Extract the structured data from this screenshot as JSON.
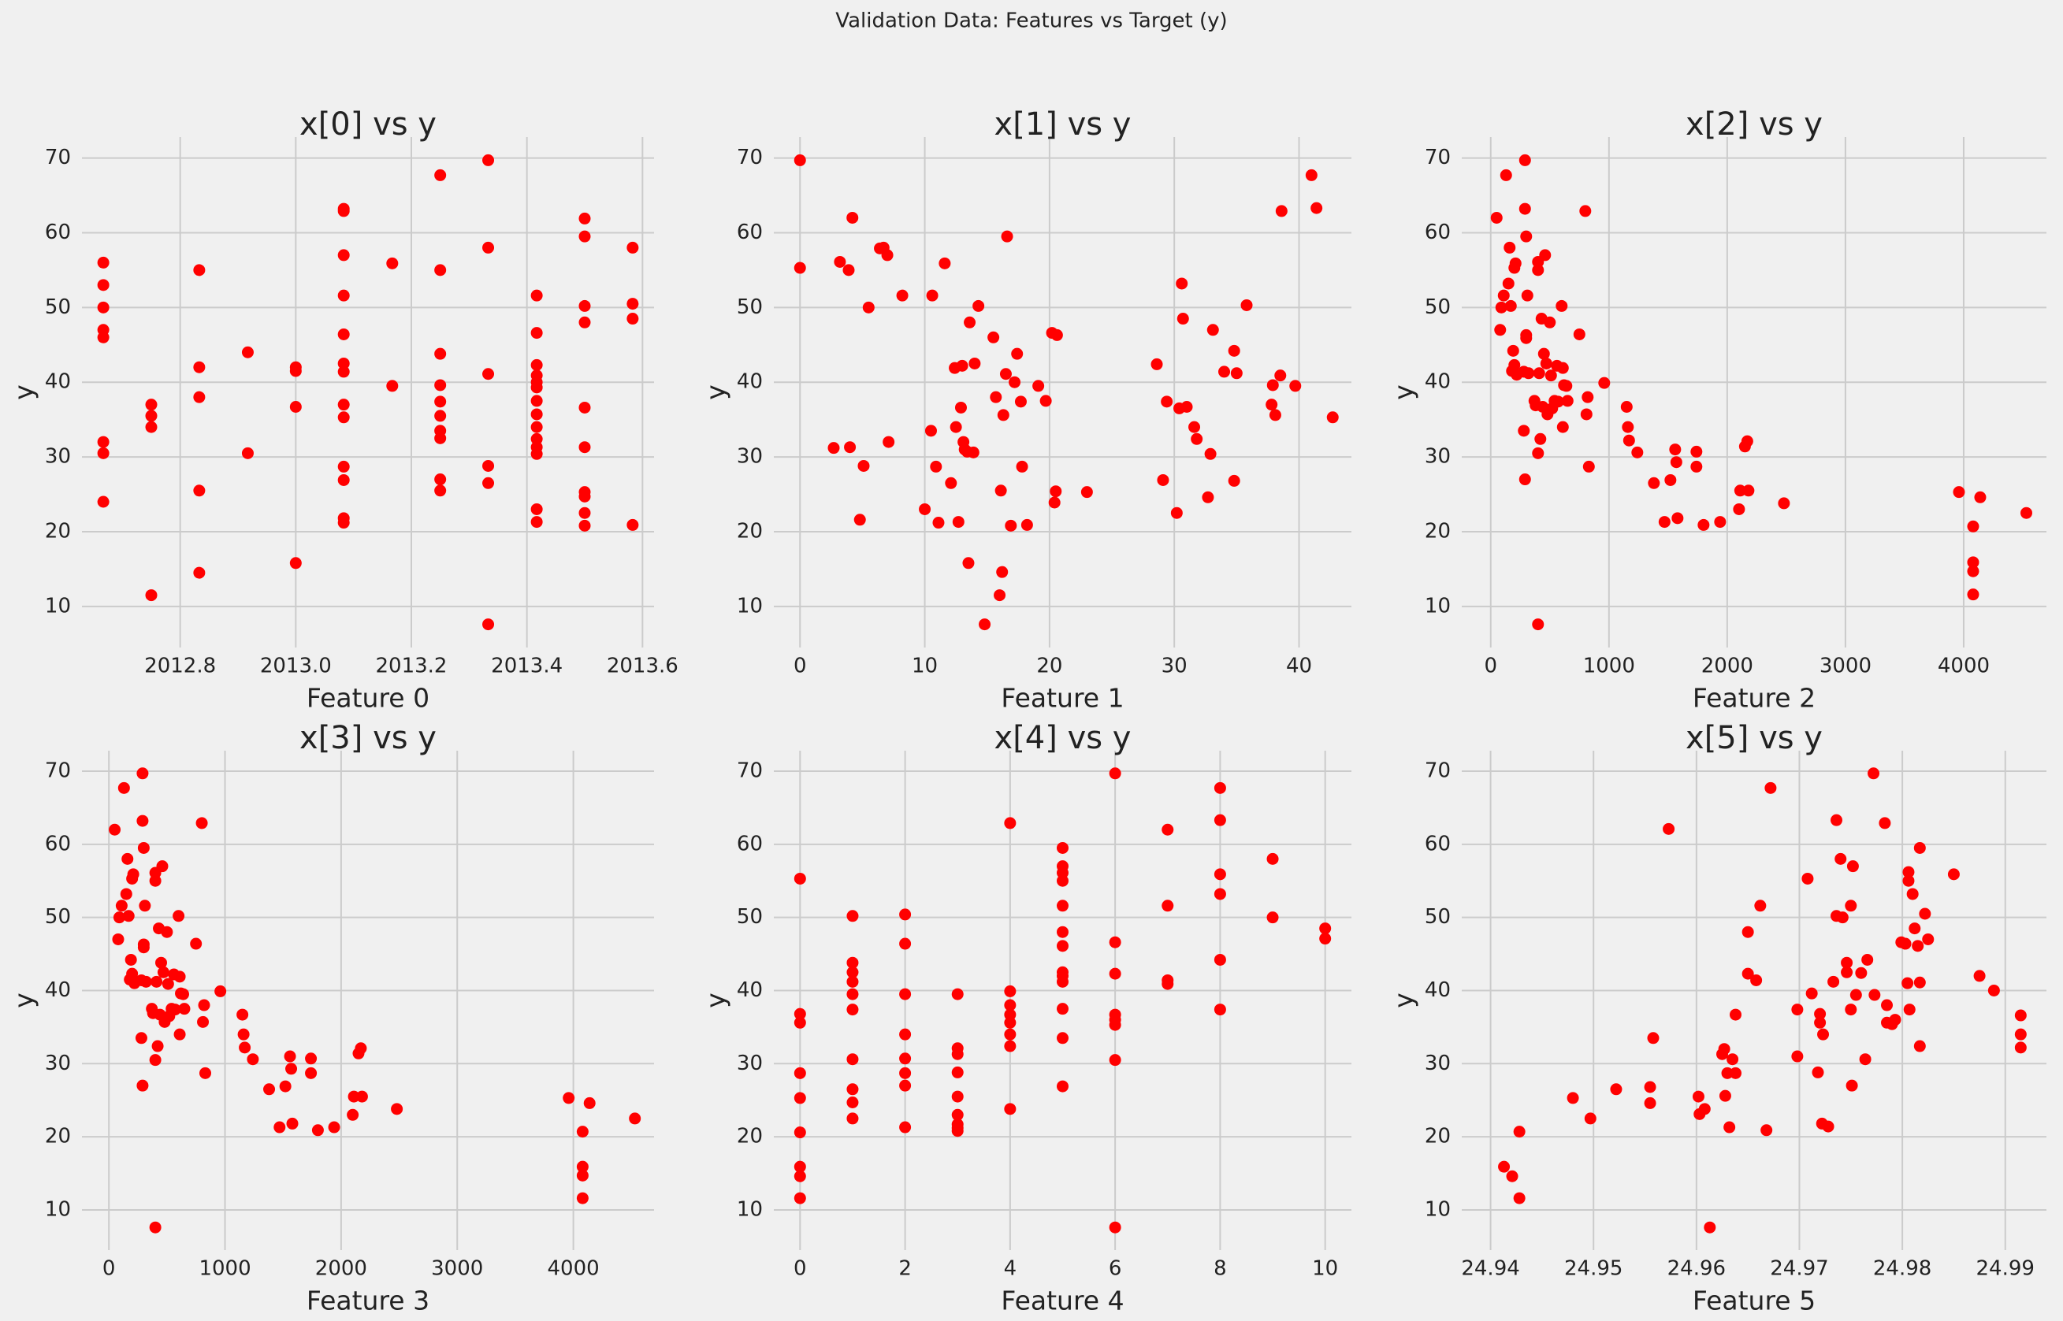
{
  "title": "Validation Data: Features vs Target (y)",
  "chart_data": [
    {
      "type": "scatter",
      "title": "x[0] vs y",
      "x_label": "Feature 0",
      "y_label": "y",
      "color": "red",
      "grid": true,
      "xlim": [
        2012.63,
        2013.62
      ],
      "ylim": [
        4.5,
        72.8
      ],
      "xticks": [
        2012.8,
        {
          "value": 2013.0,
          "label": "2013.0"
        },
        2013.2,
        2013.4,
        2013.6
      ],
      "yticks": [
        10,
        20,
        30,
        40,
        50,
        60,
        70
      ],
      "x": [
        2012.667,
        2012.667,
        2012.667,
        2012.667,
        2012.667,
        2012.667,
        2012.667,
        2012.667,
        2012.75,
        2012.75,
        2012.75,
        2012.75,
        2012.833,
        2012.833,
        2012.833,
        2012.833,
        2012.833,
        2012.917,
        2012.917,
        2013.0,
        2013.0,
        2013.0,
        2013.0,
        2013.083,
        2013.083,
        2013.083,
        2013.083,
        2013.083,
        2013.083,
        2013.083,
        2013.083,
        2013.083,
        2013.083,
        2013.083,
        2013.083,
        2013.083,
        2013.167,
        2013.167,
        2013.25,
        2013.25,
        2013.25,
        2013.25,
        2013.25,
        2013.25,
        2013.25,
        2013.25,
        2013.25,
        2013.25,
        2013.333,
        2013.333,
        2013.333,
        2013.333,
        2013.333,
        2013.333,
        2013.417,
        2013.417,
        2013.417,
        2013.417,
        2013.417,
        2013.417,
        2013.417,
        2013.417,
        2013.417,
        2013.417,
        2013.417,
        2013.417,
        2013.417,
        2013.417,
        2013.5,
        2013.5,
        2013.5,
        2013.5,
        2013.5,
        2013.5,
        2013.5,
        2013.5,
        2013.5,
        2013.5,
        2013.583,
        2013.583,
        2013.583,
        2013.583
      ],
      "values": [
        56,
        53,
        50,
        47,
        46,
        32,
        30.5,
        24,
        37,
        35.5,
        34,
        11.5,
        55,
        42,
        38,
        25.5,
        14.5,
        44,
        30.5,
        42,
        41.5,
        36.7,
        15.8,
        63.2,
        62.9,
        57,
        51.6,
        46.4,
        42.5,
        41.4,
        37,
        35.3,
        28.7,
        26.9,
        21.8,
        21.2,
        55.9,
        39.5,
        67.7,
        55,
        43.8,
        39.6,
        37.4,
        35.5,
        33.5,
        32.5,
        27,
        25.5,
        69.7,
        58,
        41.1,
        28.8,
        26.5,
        7.6,
        51.6,
        46.6,
        42.3,
        40.9,
        40,
        39.3,
        37.5,
        35.7,
        34,
        32.4,
        31.3,
        30.4,
        23,
        21.3,
        61.9,
        59.5,
        50.2,
        48,
        36.6,
        31.3,
        25.3,
        24.7,
        22.5,
        20.8,
        58,
        50.5,
        48.5,
        20.9
      ]
    },
    {
      "type": "scatter",
      "title": "x[1] vs y",
      "x_label": "Feature 1",
      "y_label": "y",
      "color": "red",
      "grid": true,
      "xlim": [
        -2.1,
        44.2
      ],
      "ylim": [
        4.5,
        72.8
      ],
      "xticks": [
        0,
        10,
        20,
        30,
        40
      ],
      "yticks": [
        10,
        20,
        30,
        40,
        50,
        60,
        70
      ],
      "x": [
        0,
        0,
        2.7,
        3.2,
        3.9,
        4,
        4.2,
        4.8,
        5.1,
        5.5,
        6.4,
        6.7,
        7,
        7.1,
        8.2,
        10,
        10.5,
        10.6,
        10.9,
        11.1,
        11.6,
        12.1,
        12.4,
        12.5,
        12.7,
        12.9,
        13,
        13.1,
        13.2,
        13.4,
        13.5,
        13.6,
        13.9,
        14,
        14.3,
        14.8,
        15.5,
        15.7,
        16,
        16.1,
        16.2,
        16.3,
        16.5,
        16.6,
        16.9,
        17.2,
        17.4,
        17.7,
        17.8,
        18.2,
        19.1,
        19.7,
        20.2,
        20.4,
        20.5,
        20.6,
        23,
        28.6,
        29.1,
        29.4,
        30.2,
        30.4,
        30.6,
        30.7,
        31,
        31.6,
        31.8,
        32.7,
        32.9,
        33.1,
        34,
        34.8,
        34.8,
        35,
        35.8,
        37.8,
        37.9,
        38.1,
        38.5,
        38.6,
        39.7,
        41,
        41.4,
        42.7
      ],
      "values": [
        69.7,
        55.3,
        31.2,
        56.1,
        55,
        31.3,
        62,
        21.6,
        28.8,
        50,
        57.9,
        58,
        57,
        32,
        51.6,
        23,
        33.5,
        51.6,
        28.7,
        21.2,
        55.9,
        26.5,
        41.9,
        34,
        21.3,
        36.6,
        42.2,
        32,
        31,
        30.7,
        15.8,
        48,
        30.6,
        42.5,
        50.2,
        7.6,
        46,
        38,
        11.5,
        25.5,
        14.6,
        35.6,
        41.1,
        59.5,
        20.8,
        40,
        43.8,
        37.4,
        28.7,
        20.9,
        39.5,
        37.5,
        46.6,
        23.9,
        25.4,
        46.3,
        25.3,
        42.4,
        26.9,
        37.4,
        22.5,
        36.5,
        53.2,
        48.5,
        36.7,
        34,
        32.4,
        24.6,
        30.4,
        47,
        41.4,
        44.2,
        26.8,
        41.2,
        50.3,
        37,
        39.6,
        35.6,
        40.9,
        62.9,
        39.5,
        67.7,
        63.3,
        35.3
      ]
    },
    {
      "type": "scatter",
      "title": "x[2] vs y",
      "x_label": "Feature 2",
      "y_label": "y",
      "color": "red",
      "grid": true,
      "xlim": [
        -245,
        4700
      ],
      "ylim": [
        4.5,
        72.8
      ],
      "xticks": [
        0,
        1000,
        2000,
        3000,
        4000
      ],
      "yticks": [
        10,
        20,
        30,
        40,
        50,
        60,
        70
      ],
      "x": [
        50,
        80,
        90,
        110,
        130,
        150,
        160,
        170,
        180,
        190,
        200,
        200,
        210,
        220,
        280,
        280,
        290,
        290,
        290,
        300,
        300,
        300,
        310,
        320,
        370,
        380,
        400,
        400,
        400,
        400,
        410,
        420,
        430,
        440,
        450,
        460,
        470,
        480,
        500,
        510,
        520,
        540,
        560,
        570,
        600,
        610,
        610,
        620,
        640,
        650,
        750,
        800,
        810,
        820,
        830,
        960,
        1150,
        1160,
        1170,
        1240,
        1380,
        1470,
        1520,
        1560,
        1580,
        1570,
        1740,
        1740,
        1800,
        1940,
        2100,
        2110,
        2150,
        2170,
        2180,
        2480,
        3960,
        4080,
        4080,
        4080,
        4080,
        4140,
        4530
      ],
      "values": [
        62,
        47,
        50,
        51.6,
        67.7,
        53.2,
        58,
        50.2,
        41.5,
        44.2,
        55.3,
        42.3,
        55.9,
        41,
        33.5,
        41.4,
        69.7,
        63.2,
        27,
        46.3,
        45.9,
        59.5,
        51.6,
        41.2,
        37.5,
        36.9,
        56.1,
        55,
        30.5,
        7.6,
        41.2,
        32.4,
        48.5,
        36.7,
        43.8,
        57,
        42.5,
        35.7,
        48,
        40.9,
        36.5,
        37.5,
        42.2,
        37.4,
        50.2,
        41.9,
        34,
        39.6,
        39.5,
        37.5,
        46.4,
        62.9,
        35.7,
        38,
        28.7,
        39.9,
        36.7,
        34,
        32.2,
        30.6,
        26.5,
        21.3,
        26.9,
        31,
        21.8,
        29.3,
        30.7,
        28.7,
        20.9,
        21.3,
        23,
        25.5,
        31.4,
        32.1,
        25.5,
        23.8,
        25.3,
        20.7,
        15.9,
        14.7,
        11.6,
        24.6,
        22.5
      ]
    },
    {
      "type": "scatter",
      "title": "x[3] vs y",
      "x_label": "Feature 3",
      "y_label": "y",
      "color": "red",
      "grid": true,
      "xlim": [
        -232,
        4695
      ],
      "ylim": [
        4.5,
        72.8
      ],
      "xticks": [
        0,
        1000,
        2000,
        3000,
        4000
      ],
      "yticks": [
        10,
        20,
        30,
        40,
        50,
        60,
        70
      ],
      "x": [
        50,
        80,
        90,
        110,
        130,
        150,
        160,
        170,
        180,
        190,
        200,
        200,
        210,
        220,
        280,
        280,
        290,
        290,
        290,
        300,
        300,
        300,
        310,
        320,
        370,
        380,
        400,
        400,
        400,
        400,
        410,
        420,
        430,
        440,
        450,
        460,
        470,
        480,
        500,
        510,
        520,
        540,
        560,
        570,
        600,
        610,
        610,
        620,
        640,
        650,
        750,
        800,
        810,
        820,
        830,
        960,
        1150,
        1160,
        1170,
        1240,
        1380,
        1470,
        1520,
        1560,
        1580,
        1570,
        1740,
        1740,
        1800,
        1940,
        2100,
        2110,
        2150,
        2170,
        2180,
        2480,
        3960,
        4080,
        4080,
        4080,
        4080,
        4140,
        4530
      ],
      "values": [
        62,
        47,
        50,
        51.6,
        67.7,
        53.2,
        58,
        50.2,
        41.5,
        44.2,
        55.3,
        42.3,
        55.9,
        41,
        33.5,
        41.4,
        69.7,
        63.2,
        27,
        46.3,
        45.9,
        59.5,
        51.6,
        41.2,
        37.5,
        36.9,
        56.1,
        55,
        30.5,
        7.6,
        41.2,
        32.4,
        48.5,
        36.7,
        43.8,
        57,
        42.5,
        35.7,
        48,
        40.9,
        36.5,
        37.5,
        42.2,
        37.4,
        50.2,
        41.9,
        34,
        39.6,
        39.5,
        37.5,
        46.4,
        62.9,
        35.7,
        38,
        28.7,
        39.9,
        36.7,
        34,
        32.2,
        30.6,
        26.5,
        21.3,
        26.9,
        31,
        21.8,
        29.3,
        30.7,
        28.7,
        20.9,
        21.3,
        23,
        25.5,
        31.4,
        32.1,
        25.5,
        23.8,
        25.3,
        20.7,
        15.9,
        14.7,
        11.6,
        24.6,
        22.5
      ]
    },
    {
      "type": "scatter",
      "title": "x[4] vs y",
      "x_label": "Feature 4",
      "y_label": "y",
      "color": "red",
      "grid": true,
      "xlim": [
        -0.5,
        10.5
      ],
      "ylim": [
        4.5,
        72.8
      ],
      "xticks": [
        0,
        2,
        4,
        6,
        8,
        10
      ],
      "yticks": [
        10,
        20,
        30,
        40,
        50,
        60,
        70
      ],
      "x": [
        0,
        0,
        0,
        0,
        0,
        0,
        0,
        0,
        0,
        1,
        1,
        1,
        1,
        1,
        1,
        1,
        1,
        1,
        1,
        2,
        2,
        2,
        2,
        2,
        2,
        2,
        2,
        3,
        3,
        3,
        3,
        3,
        3,
        3,
        3,
        3,
        4,
        4,
        4,
        4,
        4,
        4,
        4,
        4,
        5,
        5,
        5,
        5,
        5,
        5,
        5,
        5,
        5,
        5,
        5,
        5,
        5,
        6,
        6,
        6,
        6,
        6,
        6,
        6,
        6,
        7,
        7,
        7,
        7,
        8,
        8,
        8,
        8,
        8,
        8,
        9,
        9,
        10,
        10
      ],
      "values": [
        55.3,
        36.8,
        35.6,
        28.7,
        25.3,
        20.6,
        15.9,
        14.6,
        11.6,
        50.2,
        43.8,
        42.5,
        41.2,
        39.5,
        37.4,
        30.6,
        26.5,
        24.7,
        22.5,
        50.4,
        46.4,
        39.5,
        34,
        30.7,
        28.7,
        27,
        21.3,
        39.5,
        32.1,
        31.3,
        28.8,
        25.5,
        23,
        21.7,
        21.2,
        20.8,
        62.9,
        39.9,
        38,
        36.7,
        35.6,
        34,
        32.4,
        23.8,
        59.5,
        57,
        56.1,
        55,
        51.6,
        48,
        46.1,
        42.5,
        42,
        41.2,
        37.5,
        33.5,
        26.9,
        69.7,
        46.6,
        42.3,
        36.7,
        36,
        35.3,
        30.5,
        7.6,
        62,
        51.6,
        41.4,
        40.9,
        67.7,
        63.3,
        55.9,
        53.2,
        44.2,
        37.4,
        58,
        50,
        48.5,
        47.1
      ]
    },
    {
      "type": "scatter",
      "title": "x[5] vs y",
      "x_label": "Feature 5",
      "y_label": "y",
      "color": "red",
      "grid": true,
      "xlim": [
        24.9372,
        24.994
      ],
      "ylim": [
        4.5,
        72.8
      ],
      "xticks": [
        24.94,
        24.95,
        24.96,
        24.97,
        24.98,
        24.99
      ],
      "yticks": [
        10,
        20,
        30,
        40,
        50,
        60,
        70
      ],
      "x": [
        24.9413,
        24.9421,
        24.9428,
        24.9428,
        24.948,
        24.9497,
        24.9522,
        24.9555,
        24.9555,
        24.9558,
        24.9573,
        24.9602,
        24.9603,
        24.9608,
        24.9613,
        24.9625,
        24.9627,
        24.9628,
        24.963,
        24.9632,
        24.9635,
        24.9638,
        24.9638,
        24.965,
        24.965,
        24.9658,
        24.9662,
        24.9668,
        24.9672,
        24.9698,
        24.9698,
        24.9708,
        24.9712,
        24.9718,
        24.972,
        24.972,
        24.9722,
        24.9723,
        24.9728,
        24.9733,
        24.9736,
        24.9736,
        24.974,
        24.9742,
        24.9746,
        24.9746,
        24.975,
        24.975,
        24.9751,
        24.9752,
        24.9755,
        24.976,
        24.9764,
        24.9766,
        24.9772,
        24.9773,
        24.9783,
        24.9785,
        24.9785,
        24.979,
        24.9793,
        24.9799,
        24.9803,
        24.9805,
        24.9806,
        24.9806,
        24.9807,
        24.981,
        24.9812,
        24.9815,
        24.9817,
        24.9817,
        24.9817,
        24.9822,
        24.9825,
        24.985,
        24.9875,
        24.9889,
        24.9915,
        24.9915,
        24.9915
      ],
      "values": [
        15.9,
        14.6,
        20.7,
        11.6,
        25.3,
        22.5,
        26.5,
        24.6,
        26.8,
        33.5,
        62.1,
        25.5,
        23.1,
        23.8,
        7.6,
        31.3,
        32,
        25.6,
        28.7,
        21.3,
        30.6,
        28.7,
        36.7,
        48,
        42.3,
        41.4,
        51.6,
        20.9,
        67.7,
        37.4,
        31,
        55.3,
        39.6,
        28.8,
        36.8,
        35.6,
        21.8,
        34,
        21.4,
        41.2,
        63.3,
        50.2,
        58,
        50,
        42.5,
        43.8,
        51.6,
        37.4,
        27,
        57,
        39.4,
        42.4,
        30.6,
        44.2,
        69.7,
        39.4,
        62.9,
        38,
        35.6,
        35.4,
        36,
        46.6,
        46.4,
        41,
        56.2,
        55,
        37.4,
        53.2,
        48.5,
        46.1,
        59.5,
        41.1,
        32.4,
        50.5,
        47,
        55.9,
        42,
        40,
        36.6,
        34,
        32.2
      ]
    }
  ]
}
